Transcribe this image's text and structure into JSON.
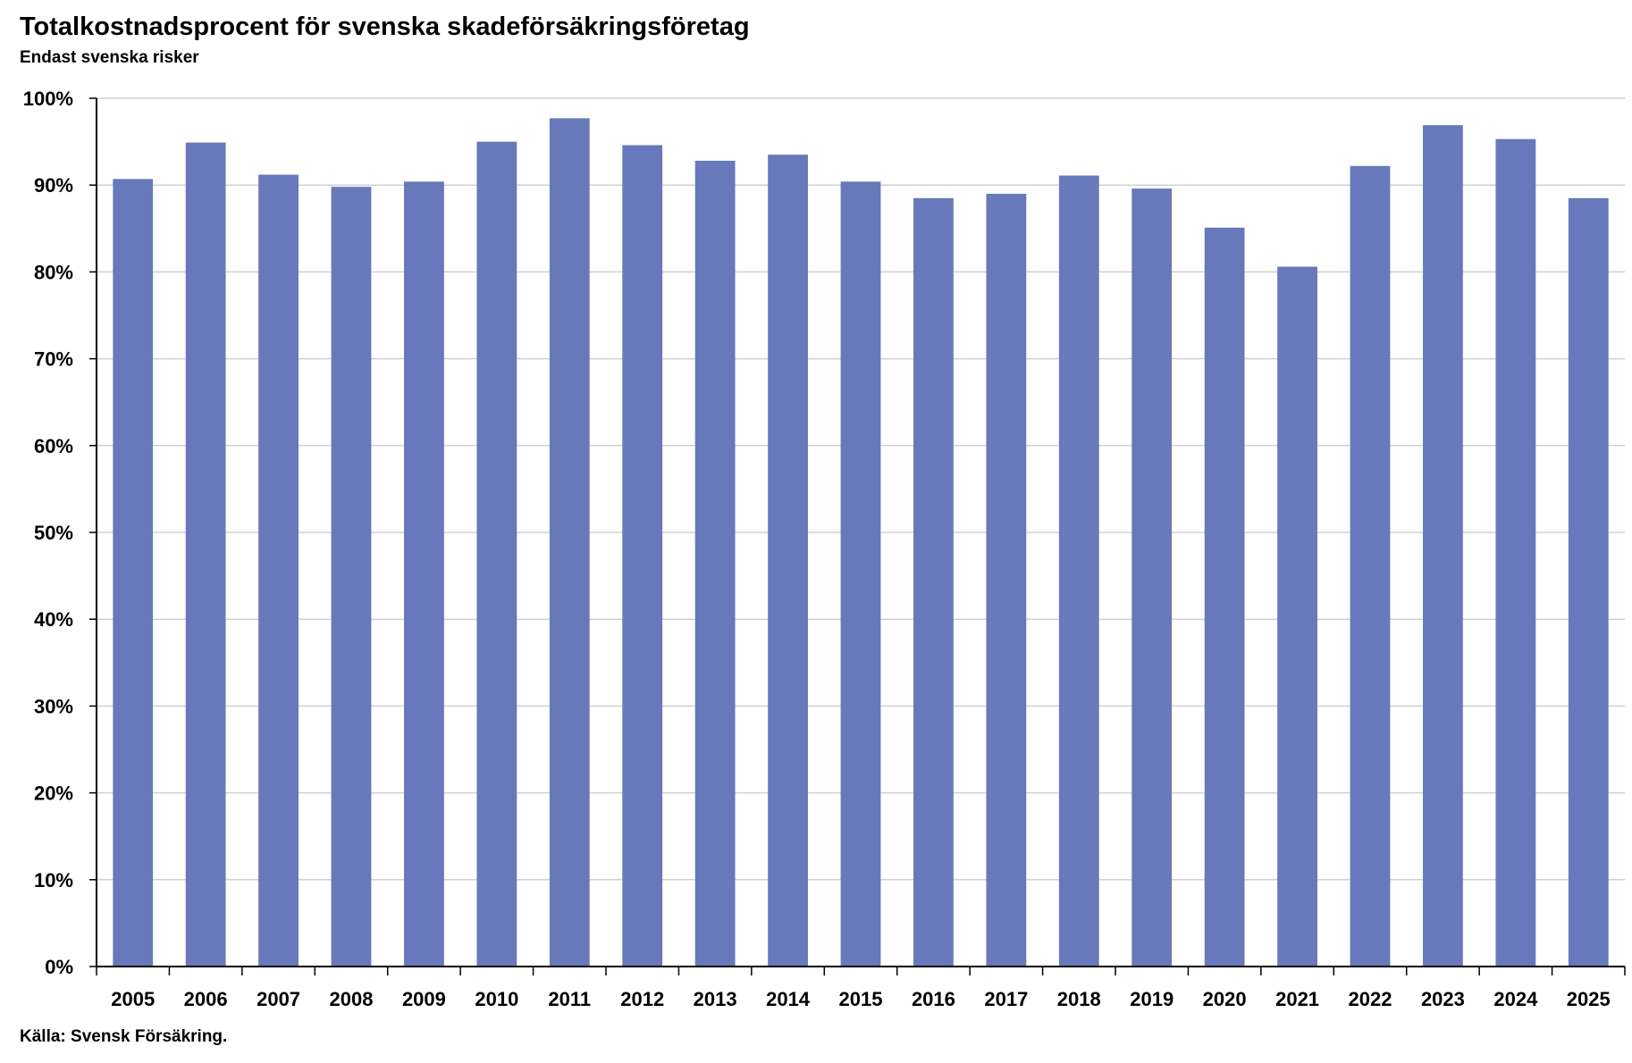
{
  "title": "Totalkostnadsprocent för svenska skadeförsäkringsföretag",
  "subtitle": "Endast svenska risker",
  "source": "Källa: Svensk Försäkring.",
  "colors": {
    "bar": "#6779BA",
    "grid": "#D0D0D0",
    "axis": "#000000"
  },
  "chart_data": {
    "type": "bar",
    "title": "Totalkostnadsprocent för svenska skadeförsäkringsföretag",
    "subtitle": "Endast svenska risker",
    "xlabel": "",
    "ylabel": "",
    "ylim": [
      0,
      100
    ],
    "yticks": [
      0,
      10,
      20,
      30,
      40,
      50,
      60,
      70,
      80,
      90,
      100
    ],
    "ytick_labels": [
      "0%",
      "10%",
      "20%",
      "30%",
      "40%",
      "50%",
      "60%",
      "70%",
      "80%",
      "90%",
      "100%"
    ],
    "grid": true,
    "legend": "none",
    "categories": [
      "2005",
      "2006",
      "2007",
      "2008",
      "2009",
      "2010",
      "2011",
      "2012",
      "2013",
      "2014",
      "2015",
      "2016",
      "2017",
      "2018",
      "2019",
      "2020",
      "2021",
      "2022",
      "2023",
      "2024",
      "2025"
    ],
    "values": [
      90.7,
      94.9,
      91.2,
      89.8,
      90.4,
      95.0,
      97.7,
      94.6,
      92.8,
      93.5,
      90.4,
      88.5,
      89.0,
      91.1,
      89.6,
      85.1,
      80.6,
      92.2,
      96.9,
      95.3,
      88.5
    ]
  }
}
